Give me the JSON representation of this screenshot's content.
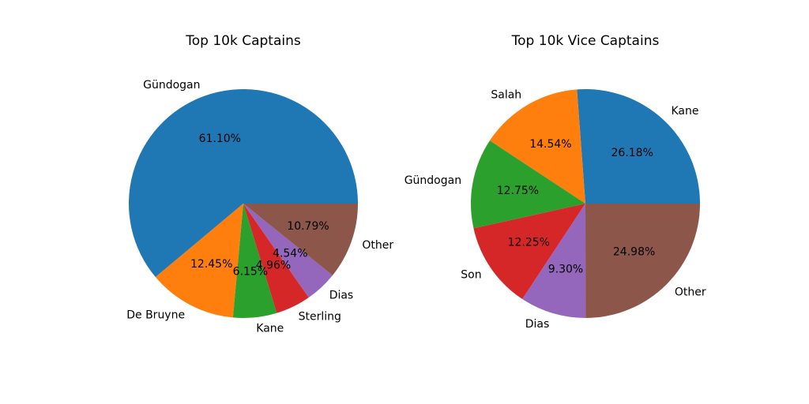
{
  "chart_data": [
    {
      "type": "pie",
      "title": "Top 10k Captains",
      "categories": [
        "Gündogan",
        "De Bruyne",
        "Kane",
        "Sterling",
        "Dias",
        "Other"
      ],
      "values": [
        61.1,
        12.45,
        6.15,
        4.96,
        4.54,
        10.79
      ],
      "value_labels": [
        "61.10%",
        "12.45%",
        "6.15%",
        "4.96%",
        "4.54%",
        "10.79%"
      ],
      "colors": [
        "#1f77b4",
        "#ff7f0e",
        "#2ca02c",
        "#d62728",
        "#9467bd",
        "#8c564b"
      ],
      "start_angle": 0,
      "direction": "counterclockwise",
      "legend": "none"
    },
    {
      "type": "pie",
      "title": "Top 10k Vice Captains",
      "categories": [
        "Kane",
        "Salah",
        "Gündogan",
        "Son",
        "Dias",
        "Other"
      ],
      "values": [
        26.18,
        14.54,
        12.75,
        12.25,
        9.3,
        24.98
      ],
      "value_labels": [
        "26.18%",
        "14.54%",
        "12.75%",
        "12.25%",
        "9.30%",
        "24.98%"
      ],
      "colors": [
        "#1f77b4",
        "#ff7f0e",
        "#2ca02c",
        "#d62728",
        "#9467bd",
        "#8c564b"
      ],
      "start_angle": 0,
      "direction": "counterclockwise",
      "legend": "none"
    }
  ]
}
